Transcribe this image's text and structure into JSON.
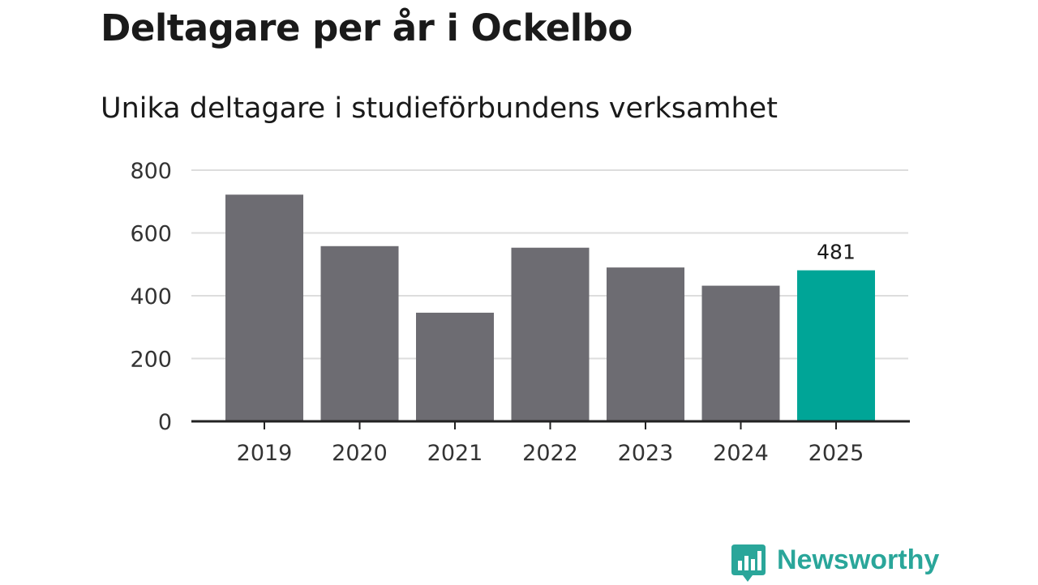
{
  "title": "Deltagare per år i Ockelbo",
  "subtitle": "Unika deltagare i studieförbundens verksamhet",
  "logo": {
    "text": "Newsworthy",
    "icon": "newsworthy-logo-icon",
    "color": "#2aa69a"
  },
  "colors": {
    "bar": "#6d6c72",
    "highlight": "#00a597",
    "grid": "#dddddd",
    "axis": "#222222"
  },
  "chart_data": {
    "type": "bar",
    "title": "Deltagare per år i Ockelbo",
    "subtitle": "Unika deltagare i studieförbundens verksamhet",
    "categories": [
      "2019",
      "2020",
      "2021",
      "2022",
      "2023",
      "2024",
      "2025"
    ],
    "values": [
      722,
      558,
      346,
      553,
      490,
      432,
      481
    ],
    "highlight_index": 6,
    "data_labels": {
      "2025": "481"
    },
    "y_ticks": [
      "0",
      "200",
      "400",
      "600",
      "800"
    ],
    "ylim": [
      0,
      800
    ],
    "grid": true,
    "legend": "none"
  }
}
